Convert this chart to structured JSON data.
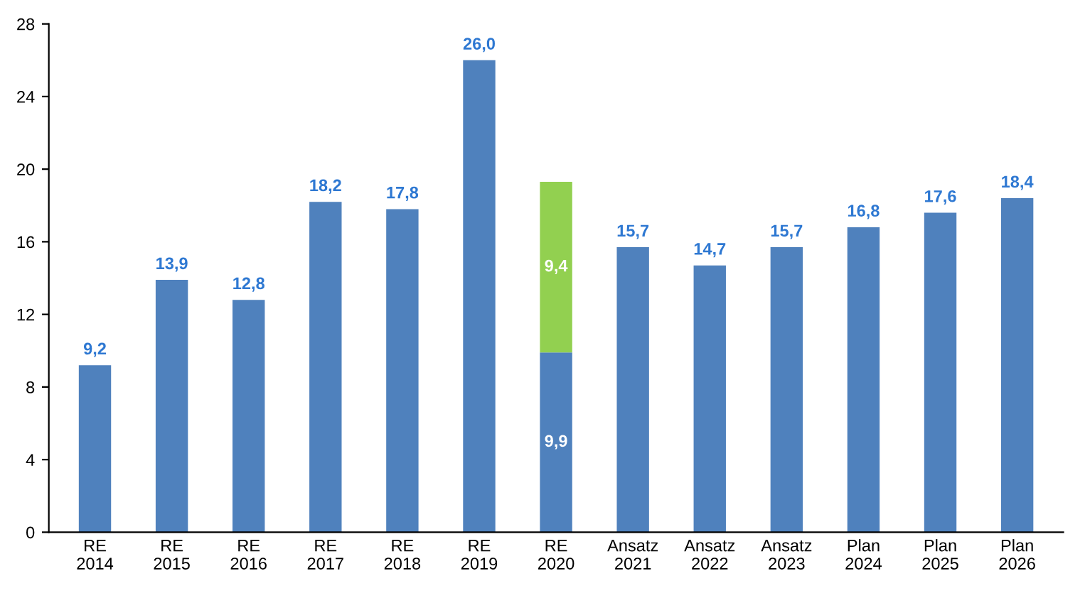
{
  "chart_data": {
    "type": "bar",
    "stacked": true,
    "categories": [
      "RE\n2014",
      "RE\n2015",
      "RE\n2016",
      "RE\n2017",
      "RE\n2018",
      "RE\n2019",
      "RE\n2020",
      "Ansatz\n2021",
      "Ansatz\n2022",
      "Ansatz\n2023",
      "Plan\n2024",
      "Plan\n2025",
      "Plan\n2026"
    ],
    "series": [
      {
        "color": "#4f81bd",
        "values": [
          9.2,
          13.9,
          12.8,
          18.2,
          17.8,
          26.0,
          9.9,
          15.7,
          14.7,
          15.7,
          16.8,
          17.6,
          18.4
        ],
        "value_labels": [
          "9,2",
          "13,9",
          "12,8",
          "18,2",
          "17,8",
          "26,0",
          "9,9",
          "15,7",
          "14,7",
          "15,7",
          "16,8",
          "17,6",
          "18,4"
        ]
      },
      {
        "color": "#92d050",
        "values": [
          null,
          null,
          null,
          null,
          null,
          null,
          9.4,
          null,
          null,
          null,
          null,
          null,
          null
        ],
        "value_labels": [
          null,
          null,
          null,
          null,
          null,
          null,
          "9,4",
          null,
          null,
          null,
          null,
          null,
          null
        ]
      }
    ],
    "ylim": [
      0,
      28
    ],
    "yticks": [
      0,
      4,
      8,
      12,
      16,
      20,
      24,
      28
    ],
    "grid": false,
    "legend": false
  }
}
